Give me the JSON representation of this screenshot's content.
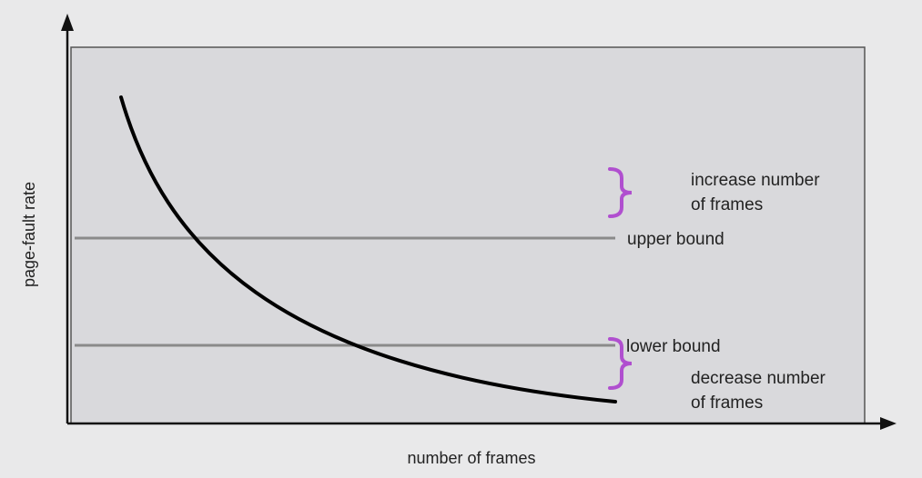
{
  "chart_data": {
    "type": "line",
    "title": "",
    "xlabel": "number of frames",
    "ylabel": "page-fault rate",
    "grid": false,
    "colors": {
      "plot_background": "#d9d9dc",
      "curve": "#000000",
      "bound_lines": "#8a8a8a",
      "brace": "#b04fcf"
    },
    "reference_lines": [
      {
        "label": "upper bound",
        "level": 0.53
      },
      {
        "label": "lower bound",
        "level": 0.21
      }
    ],
    "annotations": [
      {
        "line1": "increase number",
        "line2": "of frames",
        "brace_icon": "curly-brace-icon"
      },
      {
        "line1": "decrease number",
        "line2": "of frames",
        "brace_icon": "curly-brace-icon"
      }
    ]
  }
}
